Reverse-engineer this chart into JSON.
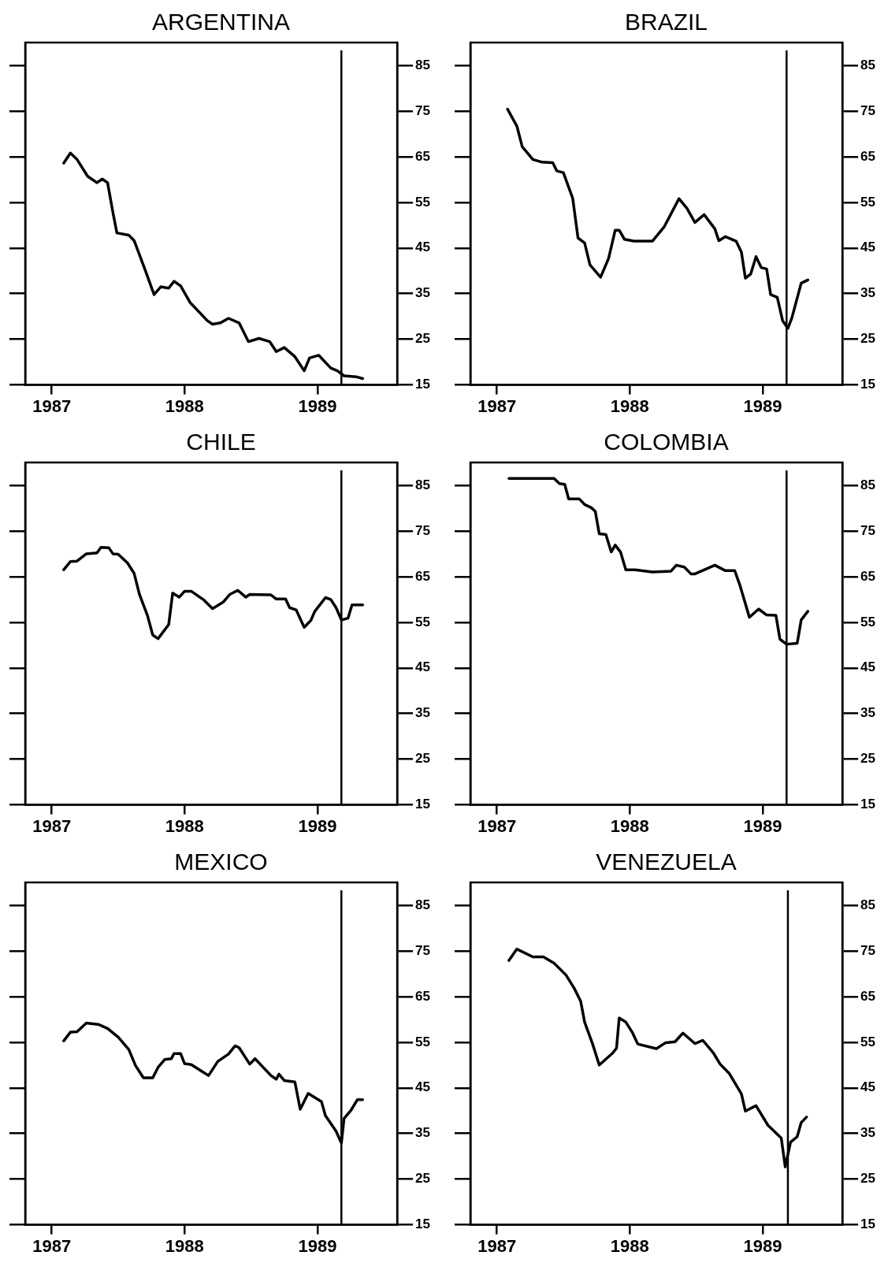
{
  "chart_data": [
    {
      "type": "line",
      "title": "ARGENTINA",
      "color": "#000000",
      "marker": "none",
      "grid": false,
      "xlim": [
        1986.8,
        1989.6
      ],
      "xticks": [
        1987,
        1988,
        1989
      ],
      "ylim": [
        15,
        90
      ],
      "yticks": [
        15,
        25,
        35,
        45,
        55,
        65,
        75,
        85
      ],
      "ref_lines": [
        {
          "axis": "x",
          "value": 1989.18,
          "label": null
        }
      ],
      "x": [
        1987.09,
        1987.14,
        1987.19,
        1987.27,
        1987.34,
        1987.38,
        1987.42,
        1987.46,
        1987.49,
        1987.58,
        1987.62,
        1987.7,
        1987.77,
        1987.82,
        1987.88,
        1987.92,
        1987.97,
        1988.04,
        1988.17,
        1988.21,
        1988.27,
        1988.33,
        1988.41,
        1988.48,
        1988.56,
        1988.64,
        1988.69,
        1988.75,
        1988.83,
        1988.9,
        1988.94,
        1989.01,
        1989.1,
        1989.15,
        1989.2,
        1989.29,
        1989.34
      ],
      "values": [
        63.6,
        65.8,
        64.4,
        60.7,
        59.3,
        60.1,
        59.3,
        52.8,
        48.3,
        47.8,
        46.6,
        40.4,
        34.8,
        36.5,
        36.2,
        37.7,
        36.7,
        33.1,
        29.1,
        28.3,
        28.6,
        29.6,
        28.6,
        24.5,
        25.2,
        24.5,
        22.3,
        23.2,
        21.2,
        18.1,
        20.9,
        21.5,
        18.7,
        18.1,
        17.0,
        16.8,
        16.4
      ]
    },
    {
      "type": "line",
      "title": "BRAZIL",
      "color": "#000000",
      "marker": "none",
      "grid": false,
      "xlim": [
        1986.8,
        1989.6
      ],
      "xticks": [
        1987,
        1988,
        1989
      ],
      "ylim": [
        15,
        90
      ],
      "yticks": [
        15,
        25,
        35,
        45,
        55,
        65,
        75,
        85
      ],
      "ref_lines": [
        {
          "axis": "x",
          "value": 1989.18,
          "label": null
        }
      ],
      "x": [
        1987.08,
        1987.15,
        1987.19,
        1987.27,
        1987.34,
        1987.42,
        1987.45,
        1987.5,
        1987.57,
        1987.61,
        1987.66,
        1987.7,
        1987.78,
        1987.84,
        1987.89,
        1987.92,
        1987.96,
        1988.03,
        1988.17,
        1988.26,
        1988.37,
        1988.43,
        1988.49,
        1988.56,
        1988.64,
        1988.67,
        1988.72,
        1988.8,
        1988.84,
        1988.87,
        1988.91,
        1988.95,
        1988.99,
        1989.03,
        1989.06,
        1989.11,
        1989.15,
        1989.19,
        1989.22,
        1989.29,
        1989.34
      ],
      "values": [
        75.4,
        71.7,
        67.2,
        64.4,
        63.8,
        63.7,
        61.9,
        61.5,
        55.9,
        47.2,
        46.1,
        41.3,
        38.6,
        42.7,
        48.9,
        48.9,
        46.9,
        46.5,
        46.5,
        49.7,
        55.8,
        53.7,
        50.6,
        52.3,
        49.2,
        46.6,
        47.5,
        46.5,
        44.1,
        38.4,
        39.3,
        43.1,
        40.7,
        40.4,
        34.8,
        34.2,
        29.1,
        27.4,
        29.7,
        37.3,
        38.0
      ]
    },
    {
      "type": "line",
      "title": "CHILE",
      "color": "#000000",
      "marker": "none",
      "grid": false,
      "xlim": [
        1986.8,
        1989.6
      ],
      "xticks": [
        1987,
        1988,
        1989
      ],
      "ylim": [
        15,
        90
      ],
      "yticks": [
        15,
        25,
        35,
        45,
        55,
        65,
        75,
        85
      ],
      "ref_lines": [
        {
          "axis": "x",
          "value": 1989.18,
          "label": null
        }
      ],
      "x": [
        1987.09,
        1987.14,
        1987.19,
        1987.26,
        1987.34,
        1987.37,
        1987.43,
        1987.46,
        1987.5,
        1987.57,
        1987.62,
        1987.66,
        1987.72,
        1987.76,
        1987.8,
        1987.88,
        1987.91,
        1987.96,
        1988.0,
        1988.05,
        1988.14,
        1988.21,
        1988.29,
        1988.34,
        1988.4,
        1988.46,
        1988.49,
        1988.65,
        1988.69,
        1988.76,
        1988.79,
        1988.84,
        1988.9,
        1988.95,
        1988.98,
        1989.06,
        1989.1,
        1989.14,
        1989.18,
        1989.23,
        1989.26,
        1989.34
      ],
      "values": [
        66.5,
        68.3,
        68.4,
        70.0,
        70.2,
        71.4,
        71.3,
        70.0,
        69.9,
        68.0,
        65.7,
        61.1,
        56.5,
        52.2,
        51.4,
        54.5,
        61.4,
        60.5,
        61.8,
        61.8,
        60.0,
        58.0,
        59.4,
        61.1,
        62.0,
        60.5,
        61.1,
        61.0,
        60.1,
        60.1,
        58.2,
        57.7,
        53.9,
        55.4,
        57.4,
        60.4,
        60.0,
        58.2,
        55.5,
        55.9,
        58.8,
        58.8
      ]
    },
    {
      "type": "line",
      "title": "COLOMBIA",
      "color": "#000000",
      "marker": "none",
      "grid": false,
      "xlim": [
        1986.8,
        1989.6
      ],
      "xticks": [
        1987,
        1988,
        1989
      ],
      "ylim": [
        15,
        90
      ],
      "yticks": [
        15,
        25,
        35,
        45,
        55,
        65,
        75,
        85
      ],
      "ref_lines": [
        {
          "axis": "x",
          "value": 1989.18,
          "label": null
        }
      ],
      "x": [
        1987.09,
        1987.43,
        1987.47,
        1987.51,
        1987.54,
        1987.62,
        1987.66,
        1987.71,
        1987.74,
        1987.77,
        1987.82,
        1987.86,
        1987.89,
        1987.93,
        1987.97,
        1988.04,
        1988.17,
        1988.31,
        1988.35,
        1988.41,
        1988.46,
        1988.49,
        1988.64,
        1988.72,
        1988.79,
        1988.83,
        1988.9,
        1988.97,
        1989.03,
        1989.1,
        1989.13,
        1989.18,
        1989.26,
        1989.29,
        1989.34
      ],
      "values": [
        86.5,
        86.5,
        85.4,
        85.2,
        82.0,
        82.0,
        80.8,
        80.1,
        79.3,
        74.4,
        74.2,
        70.4,
        71.9,
        70.4,
        66.5,
        66.5,
        66.0,
        66.2,
        67.5,
        67.1,
        65.6,
        65.6,
        67.5,
        66.3,
        66.3,
        63.0,
        56.1,
        57.9,
        56.6,
        56.5,
        51.3,
        50.2,
        50.4,
        55.5,
        57.4
      ]
    },
    {
      "type": "line",
      "title": "MEXICO",
      "color": "#000000",
      "marker": "none",
      "grid": false,
      "xlim": [
        1986.8,
        1989.6
      ],
      "xticks": [
        1987,
        1988,
        1989
      ],
      "ylim": [
        15,
        90
      ],
      "yticks": [
        15,
        25,
        35,
        45,
        55,
        65,
        75,
        85
      ],
      "ref_lines": [
        {
          "axis": "x",
          "value": 1989.18,
          "label": null
        }
      ],
      "x": [
        1987.09,
        1987.14,
        1987.19,
        1987.26,
        1987.35,
        1987.42,
        1987.5,
        1987.58,
        1987.63,
        1987.69,
        1987.76,
        1987.8,
        1987.85,
        1987.9,
        1987.92,
        1987.97,
        1988.0,
        1988.05,
        1988.18,
        1988.25,
        1988.33,
        1988.38,
        1988.41,
        1988.49,
        1988.53,
        1988.65,
        1988.69,
        1988.71,
        1988.75,
        1988.83,
        1988.87,
        1988.93,
        1989.03,
        1989.06,
        1989.14,
        1989.18,
        1989.2,
        1989.25,
        1989.3,
        1989.34
      ],
      "values": [
        55.3,
        57.2,
        57.3,
        59.2,
        58.9,
        58.0,
        56.1,
        53.4,
        49.9,
        47.2,
        47.2,
        49.5,
        51.2,
        51.4,
        52.5,
        52.5,
        50.3,
        50.1,
        47.7,
        50.8,
        52.4,
        54.2,
        53.8,
        50.2,
        51.4,
        47.7,
        46.9,
        48.0,
        46.6,
        46.3,
        40.3,
        43.8,
        42.0,
        38.9,
        35.5,
        32.9,
        38.3,
        40.0,
        42.4,
        42.4
      ]
    },
    {
      "type": "line",
      "title": "VENEZUELA",
      "color": "#000000",
      "marker": "none",
      "grid": false,
      "xlim": [
        1986.8,
        1989.6
      ],
      "xticks": [
        1987,
        1988,
        1989
      ],
      "ylim": [
        15,
        90
      ],
      "yticks": [
        15,
        25,
        35,
        45,
        55,
        65,
        75,
        85
      ],
      "ref_lines": [
        {
          "axis": "x",
          "value": 1989.19,
          "label": null
        }
      ],
      "x": [
        1987.09,
        1987.15,
        1987.27,
        1987.35,
        1987.43,
        1987.52,
        1987.58,
        1987.63,
        1987.66,
        1987.72,
        1987.77,
        1987.87,
        1987.9,
        1987.92,
        1987.97,
        1988.02,
        1988.06,
        1988.2,
        1988.27,
        1988.34,
        1988.4,
        1988.49,
        1988.55,
        1988.63,
        1988.68,
        1988.75,
        1988.84,
        1988.87,
        1988.95,
        1989.04,
        1989.14,
        1989.17,
        1989.21,
        1989.26,
        1989.29,
        1989.33
      ],
      "values": [
        72.9,
        75.4,
        73.7,
        73.7,
        72.3,
        69.7,
        66.9,
        64.0,
        59.4,
        54.6,
        50.0,
        52.6,
        53.7,
        60.3,
        59.4,
        57.1,
        54.6,
        53.6,
        54.9,
        55.1,
        57.0,
        54.7,
        55.4,
        52.6,
        50.2,
        48.1,
        43.7,
        39.9,
        41.1,
        36.8,
        34.0,
        27.7,
        33.1,
        34.3,
        37.4,
        38.6
      ]
    }
  ]
}
